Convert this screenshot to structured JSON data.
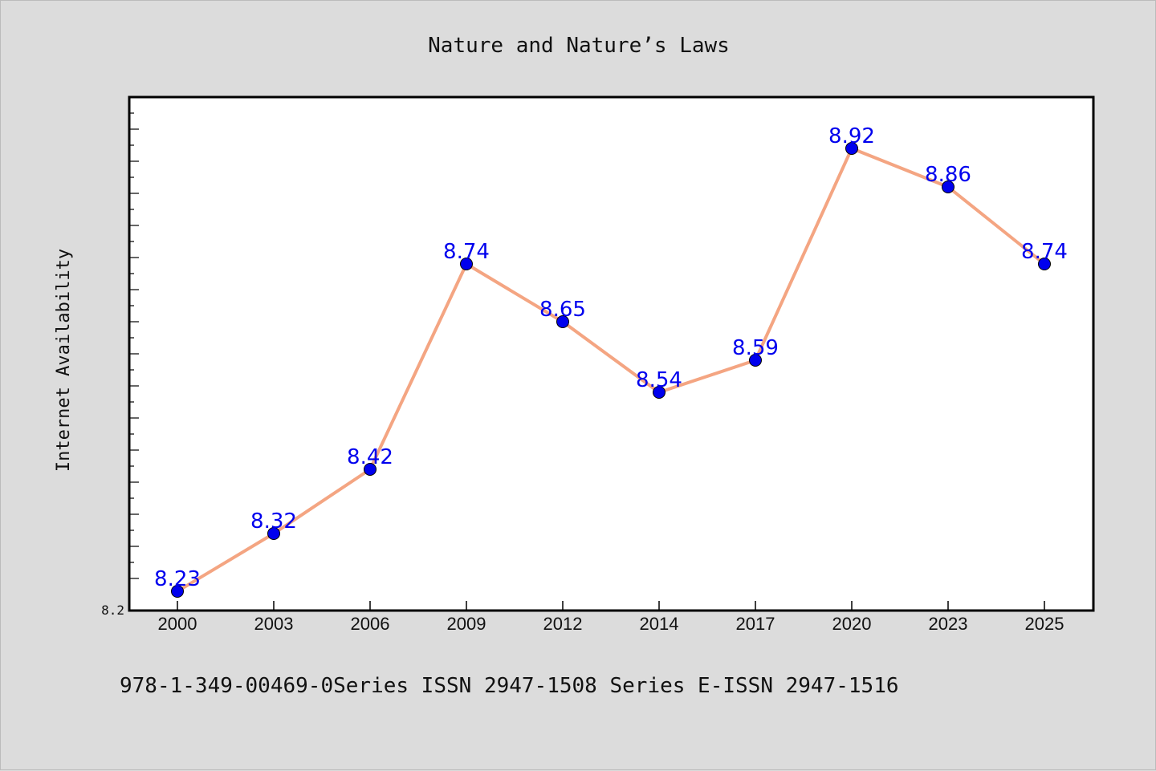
{
  "footer_text": "978-1-349-00469-0Series ISSN 2947-1508 Series E-ISSN 2947-1516",
  "colors": {
    "background": "#dcdcdc",
    "plot_background": "#ffffff",
    "line": "#f4a582",
    "marker": "#0000ee",
    "data_label": "#0000ee"
  },
  "chart_data": {
    "type": "line",
    "title": "Nature and Nature’s Laws",
    "xlabel": "",
    "ylabel": "Internet Availability",
    "categories": [
      "2000",
      "2003",
      "2006",
      "2009",
      "2012",
      "2014",
      "2017",
      "2020",
      "2023",
      "2025"
    ],
    "series": [
      {
        "values": [
          8.23,
          8.32,
          8.42,
          8.74,
          8.65,
          8.54,
          8.59,
          8.92,
          8.86,
          8.74
        ]
      }
    ],
    "y_tick_labels": [
      "8.2"
    ],
    "ylim": [
      8.2,
      9.0
    ],
    "grid": false,
    "legend": "none",
    "data_labels": true,
    "marker": "circle"
  }
}
